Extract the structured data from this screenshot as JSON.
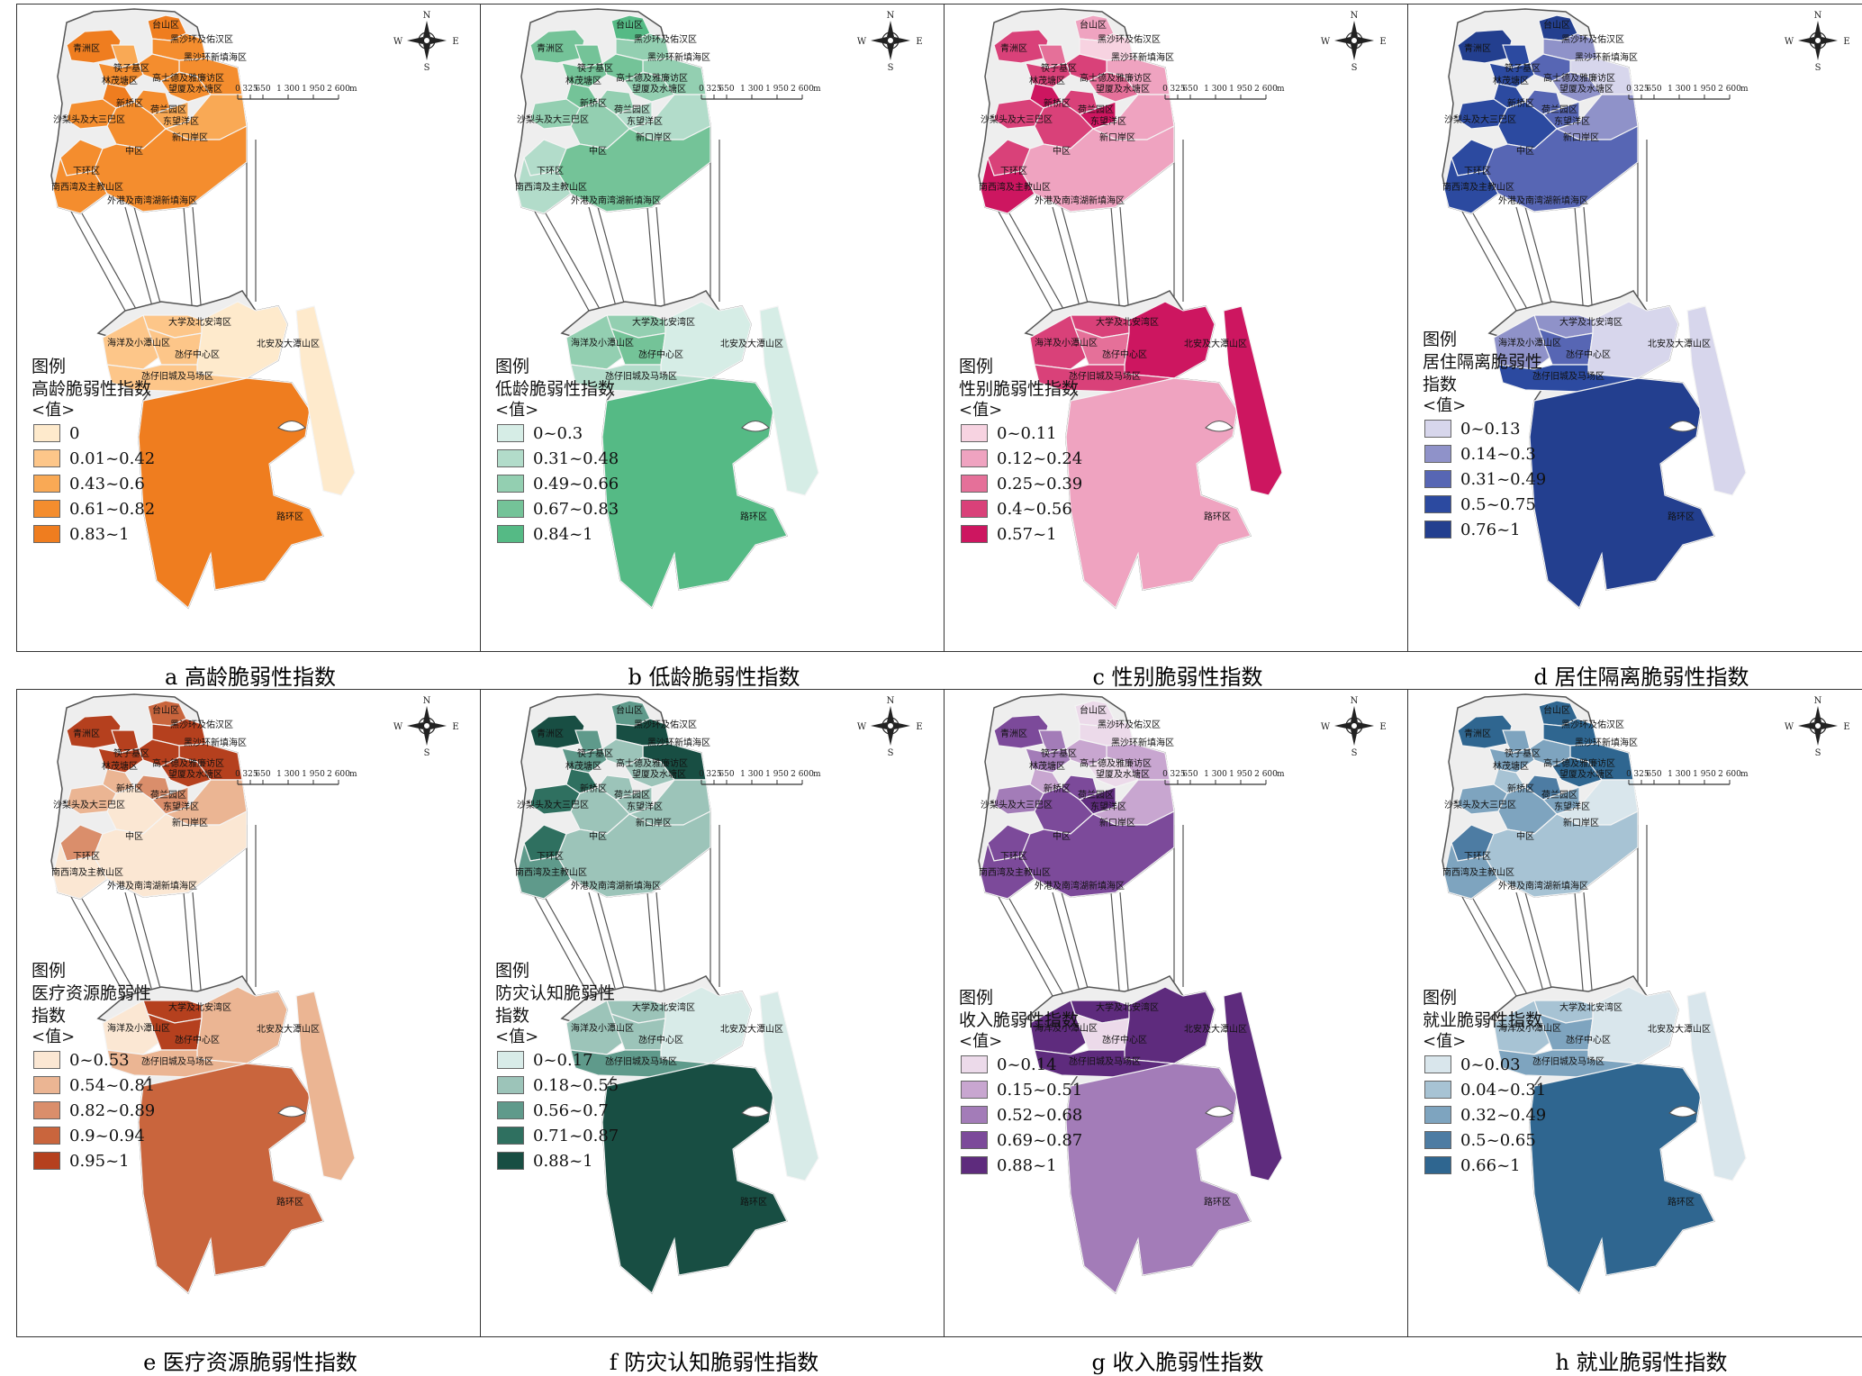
{
  "common": {
    "legend_heading": "图例",
    "legend_value_label": "<值>",
    "north": "N",
    "south": "S",
    "east": "E",
    "west": "W",
    "scale_ticks": [
      "0",
      "325",
      "650",
      "1 300",
      "1 950",
      "2 600"
    ],
    "scale_unit": "m",
    "districts": {
      "taishan": "台山区",
      "qingzhou": "青洲区",
      "heishahuan_youhan": "黑沙环及佑汉区",
      "heishahuan_xintian": "黑沙环新填海区",
      "huangzhaiqi": "筷子基区",
      "gaoshide": "高士德及雅廉访区",
      "linmao": "林茂塘区",
      "wangxia": "望厦及水塘区",
      "xinqiao": "新桥区",
      "helan": "荷兰园区",
      "shalitou": "沙梨头及大三巴区",
      "dongwangyang": "东望洋区",
      "xinkouan": "新口岸区",
      "zhongqu": "中区",
      "xiahuan": "下环区",
      "nanxiwan": "南西湾及主教山区",
      "waigang": "外港及南湾湖新填海区",
      "daxue": "大学及北安湾区",
      "haiyang": "海洋及小潭山区",
      "zaizai": "氹仔中心区",
      "beian": "北安及大潭山区",
      "zaizaijiu": "氹仔旧城及马场区",
      "luhuan": "路环区"
    }
  },
  "panels": [
    {
      "caption": "a 高龄脆弱性指数",
      "legend_title": "高龄脆弱性指数",
      "classes": [
        "0",
        "0.01~0.42",
        "0.43~0.6",
        "0.61~0.82",
        "0.83~1"
      ],
      "colors": [
        "#feeacc",
        "#fdc689",
        "#f9a955",
        "#f48d2e",
        "#ef7d1f"
      ],
      "district_class": {
        "taishan": 4,
        "qingzhou": 4,
        "heishahuan_youhan": 3,
        "heishahuan_xintian": 3,
        "huangzhaiqi": 2,
        "gaoshide": 3,
        "linmao": 3,
        "wangxia": 3,
        "xinqiao": 4,
        "helan": 3,
        "shalitou": 3,
        "dongwangyang": 2,
        "xinkouan": 2,
        "zhongqu": 3,
        "xiahuan": 3,
        "nanxiwan": 3,
        "waigang": 3,
        "daxue": 1,
        "haiyang": 1,
        "zaizai": 1,
        "beian": 0,
        "zaizaijiu": 1,
        "luhuan": 4,
        "bridge": 0
      }
    },
    {
      "caption": "b 低龄脆弱性指数",
      "legend_title": "低龄脆弱性指数",
      "classes": [
        "0~0.3",
        "0.31~0.48",
        "0.49~0.66",
        "0.67~0.83",
        "0.84~1"
      ],
      "colors": [
        "#d6ede6",
        "#b2dcca",
        "#93cfb1",
        "#74c398",
        "#55ba85"
      ],
      "district_class": {
        "taishan": 4,
        "qingzhou": 3,
        "heishahuan_youhan": 2,
        "heishahuan_xintian": 2,
        "huangzhaiqi": 3,
        "gaoshide": 3,
        "linmao": 3,
        "wangxia": 2,
        "xinqiao": 3,
        "helan": 2,
        "shalitou": 2,
        "dongwangyang": 1,
        "xinkouan": 1,
        "zhongqu": 2,
        "xiahuan": 1,
        "nanxiwan": 1,
        "waigang": 3,
        "daxue": 2,
        "haiyang": 2,
        "zaizai": 3,
        "beian": 0,
        "zaizaijiu": 1,
        "luhuan": 4,
        "bridge": 0
      }
    },
    {
      "caption": "c 性别脆弱性指数",
      "legend_title": "性别脆弱性指数",
      "classes": [
        "0~0.11",
        "0.12~0.24",
        "0.25~0.39",
        "0.4~0.56",
        "0.57~1"
      ],
      "colors": [
        "#f7d3e1",
        "#efa3c0",
        "#e57099",
        "#d94179",
        "#cd1660"
      ],
      "district_class": {
        "taishan": 1,
        "qingzhou": 3,
        "heishahuan_youhan": 0,
        "heishahuan_xintian": 1,
        "huangzhaiqi": 2,
        "gaoshide": 3,
        "linmao": 3,
        "wangxia": 2,
        "xinqiao": 4,
        "helan": 3,
        "shalitou": 3,
        "dongwangyang": 4,
        "xinkouan": 1,
        "zhongqu": 3,
        "xiahuan": 3,
        "nanxiwan": 4,
        "waigang": 1,
        "daxue": 3,
        "haiyang": 3,
        "zaizai": 2,
        "beian": 4,
        "zaizaijiu": 3,
        "luhuan": 1,
        "bridge": 4
      }
    },
    {
      "caption": "d 居住隔离脆弱性指数",
      "legend_title": "居住隔离脆弱性\n指数",
      "classes": [
        "0~0.13",
        "0.14~0.3",
        "0.31~0.49",
        "0.5~0.75",
        "0.76~1"
      ],
      "colors": [
        "#d7d6ec",
        "#8f92c9",
        "#5766b4",
        "#2c4aa0",
        "#233f8f"
      ],
      "district_class": {
        "taishan": 4,
        "qingzhou": 4,
        "heishahuan_youhan": 1,
        "heishahuan_xintian": 0,
        "huangzhaiqi": 3,
        "gaoshide": 2,
        "linmao": 3,
        "wangxia": 1,
        "xinqiao": 3,
        "helan": 2,
        "shalitou": 3,
        "dongwangyang": 2,
        "xinkouan": 1,
        "zhongqu": 3,
        "xiahuan": 3,
        "nanxiwan": 3,
        "waigang": 2,
        "daxue": 1,
        "haiyang": 1,
        "zaizai": 2,
        "beian": 0,
        "zaizaijiu": 3,
        "luhuan": 4,
        "bridge": 0
      }
    },
    {
      "caption": "e 医疗资源脆弱性指数",
      "legend_title": "医疗资源脆弱性\n指数",
      "classes": [
        "0~0.53",
        "0.54~0.81",
        "0.82~0.89",
        "0.9~0.94",
        "0.95~1"
      ],
      "colors": [
        "#fbe7d3",
        "#ebb593",
        "#da8e6b",
        "#c9653d",
        "#b5401e"
      ],
      "district_class": {
        "taishan": 3,
        "qingzhou": 4,
        "heishahuan_youhan": 4,
        "heishahuan_xintian": 4,
        "huangzhaiqi": 4,
        "gaoshide": 4,
        "linmao": 4,
        "wangxia": 4,
        "xinqiao": 1,
        "helan": 2,
        "shalitou": 1,
        "dongwangyang": 2,
        "xinkouan": 1,
        "zhongqu": 0,
        "xiahuan": 2,
        "nanxiwan": 0,
        "waigang": 0,
        "daxue": 4,
        "haiyang": 0,
        "zaizai": 4,
        "beian": 1,
        "zaizaijiu": 1,
        "luhuan": 3,
        "bridge": 1
      }
    },
    {
      "caption": "f 防灾认知脆弱性指数",
      "legend_title": "防灾认知脆弱性\n指数",
      "classes": [
        "0~0.17",
        "0.18~0.55",
        "0.56~0.7",
        "0.71~0.87",
        "0.88~1"
      ],
      "colors": [
        "#d8ebe8",
        "#9cc4b9",
        "#5f9a8b",
        "#2f7060",
        "#184e43"
      ],
      "district_class": {
        "taishan": 2,
        "qingzhou": 4,
        "heishahuan_youhan": 4,
        "heishahuan_xintian": 4,
        "huangzhaiqi": 2,
        "gaoshide": 1,
        "linmao": 2,
        "wangxia": 1,
        "xinqiao": 3,
        "helan": 1,
        "shalitou": 3,
        "dongwangyang": 1,
        "xinkouan": 1,
        "zhongqu": 1,
        "xiahuan": 3,
        "nanxiwan": 2,
        "waigang": 1,
        "daxue": 1,
        "haiyang": 1,
        "zaizai": 1,
        "beian": 0,
        "zaizaijiu": 2,
        "luhuan": 4,
        "bridge": 0
      }
    },
    {
      "caption": "g 收入脆弱性指数",
      "legend_title": "收入脆弱性指数",
      "classes": [
        "0~0.14",
        "0.15~0.51",
        "0.52~0.68",
        "0.69~0.87",
        "0.88~1"
      ],
      "colors": [
        "#ecdaea",
        "#c8a6d0",
        "#a37cb8",
        "#7c4a9a",
        "#5e2b7d"
      ],
      "district_class": {
        "taishan": 0,
        "qingzhou": 3,
        "heishahuan_youhan": 0,
        "heishahuan_xintian": 1,
        "huangzhaiqi": 2,
        "gaoshide": 1,
        "linmao": 2,
        "wangxia": 0,
        "xinqiao": 1,
        "helan": 3,
        "shalitou": 2,
        "dongwangyang": 4,
        "xinkouan": 1,
        "zhongqu": 3,
        "xiahuan": 3,
        "nanxiwan": 3,
        "waigang": 3,
        "daxue": 4,
        "haiyang": 4,
        "zaizai": 0,
        "beian": 4,
        "zaizaijiu": 4,
        "luhuan": 2,
        "bridge": 4
      }
    },
    {
      "caption": "h 就业脆弱性指数",
      "legend_title": "就业脆弱性指数",
      "classes": [
        "0~0.03",
        "0.04~0.31",
        "0.32~0.49",
        "0.5~0.65",
        "0.66~1"
      ],
      "colors": [
        "#d9e6ec",
        "#a7c3d4",
        "#7ea4bf",
        "#4d7ca3",
        "#2f6690"
      ],
      "district_class": {
        "taishan": 4,
        "qingzhou": 4,
        "heishahuan_youhan": 4,
        "heishahuan_xintian": 4,
        "huangzhaiqi": 2,
        "gaoshide": 2,
        "linmao": 2,
        "wangxia": 4,
        "xinqiao": 1,
        "helan": 3,
        "shalitou": 2,
        "dongwangyang": 2,
        "xinkouan": 0,
        "zhongqu": 2,
        "xiahuan": 3,
        "nanxiwan": 2,
        "waigang": 1,
        "daxue": 1,
        "haiyang": 1,
        "zaizai": 2,
        "beian": 0,
        "zaizaijiu": 2,
        "luhuan": 4,
        "bridge": 0
      }
    }
  ]
}
